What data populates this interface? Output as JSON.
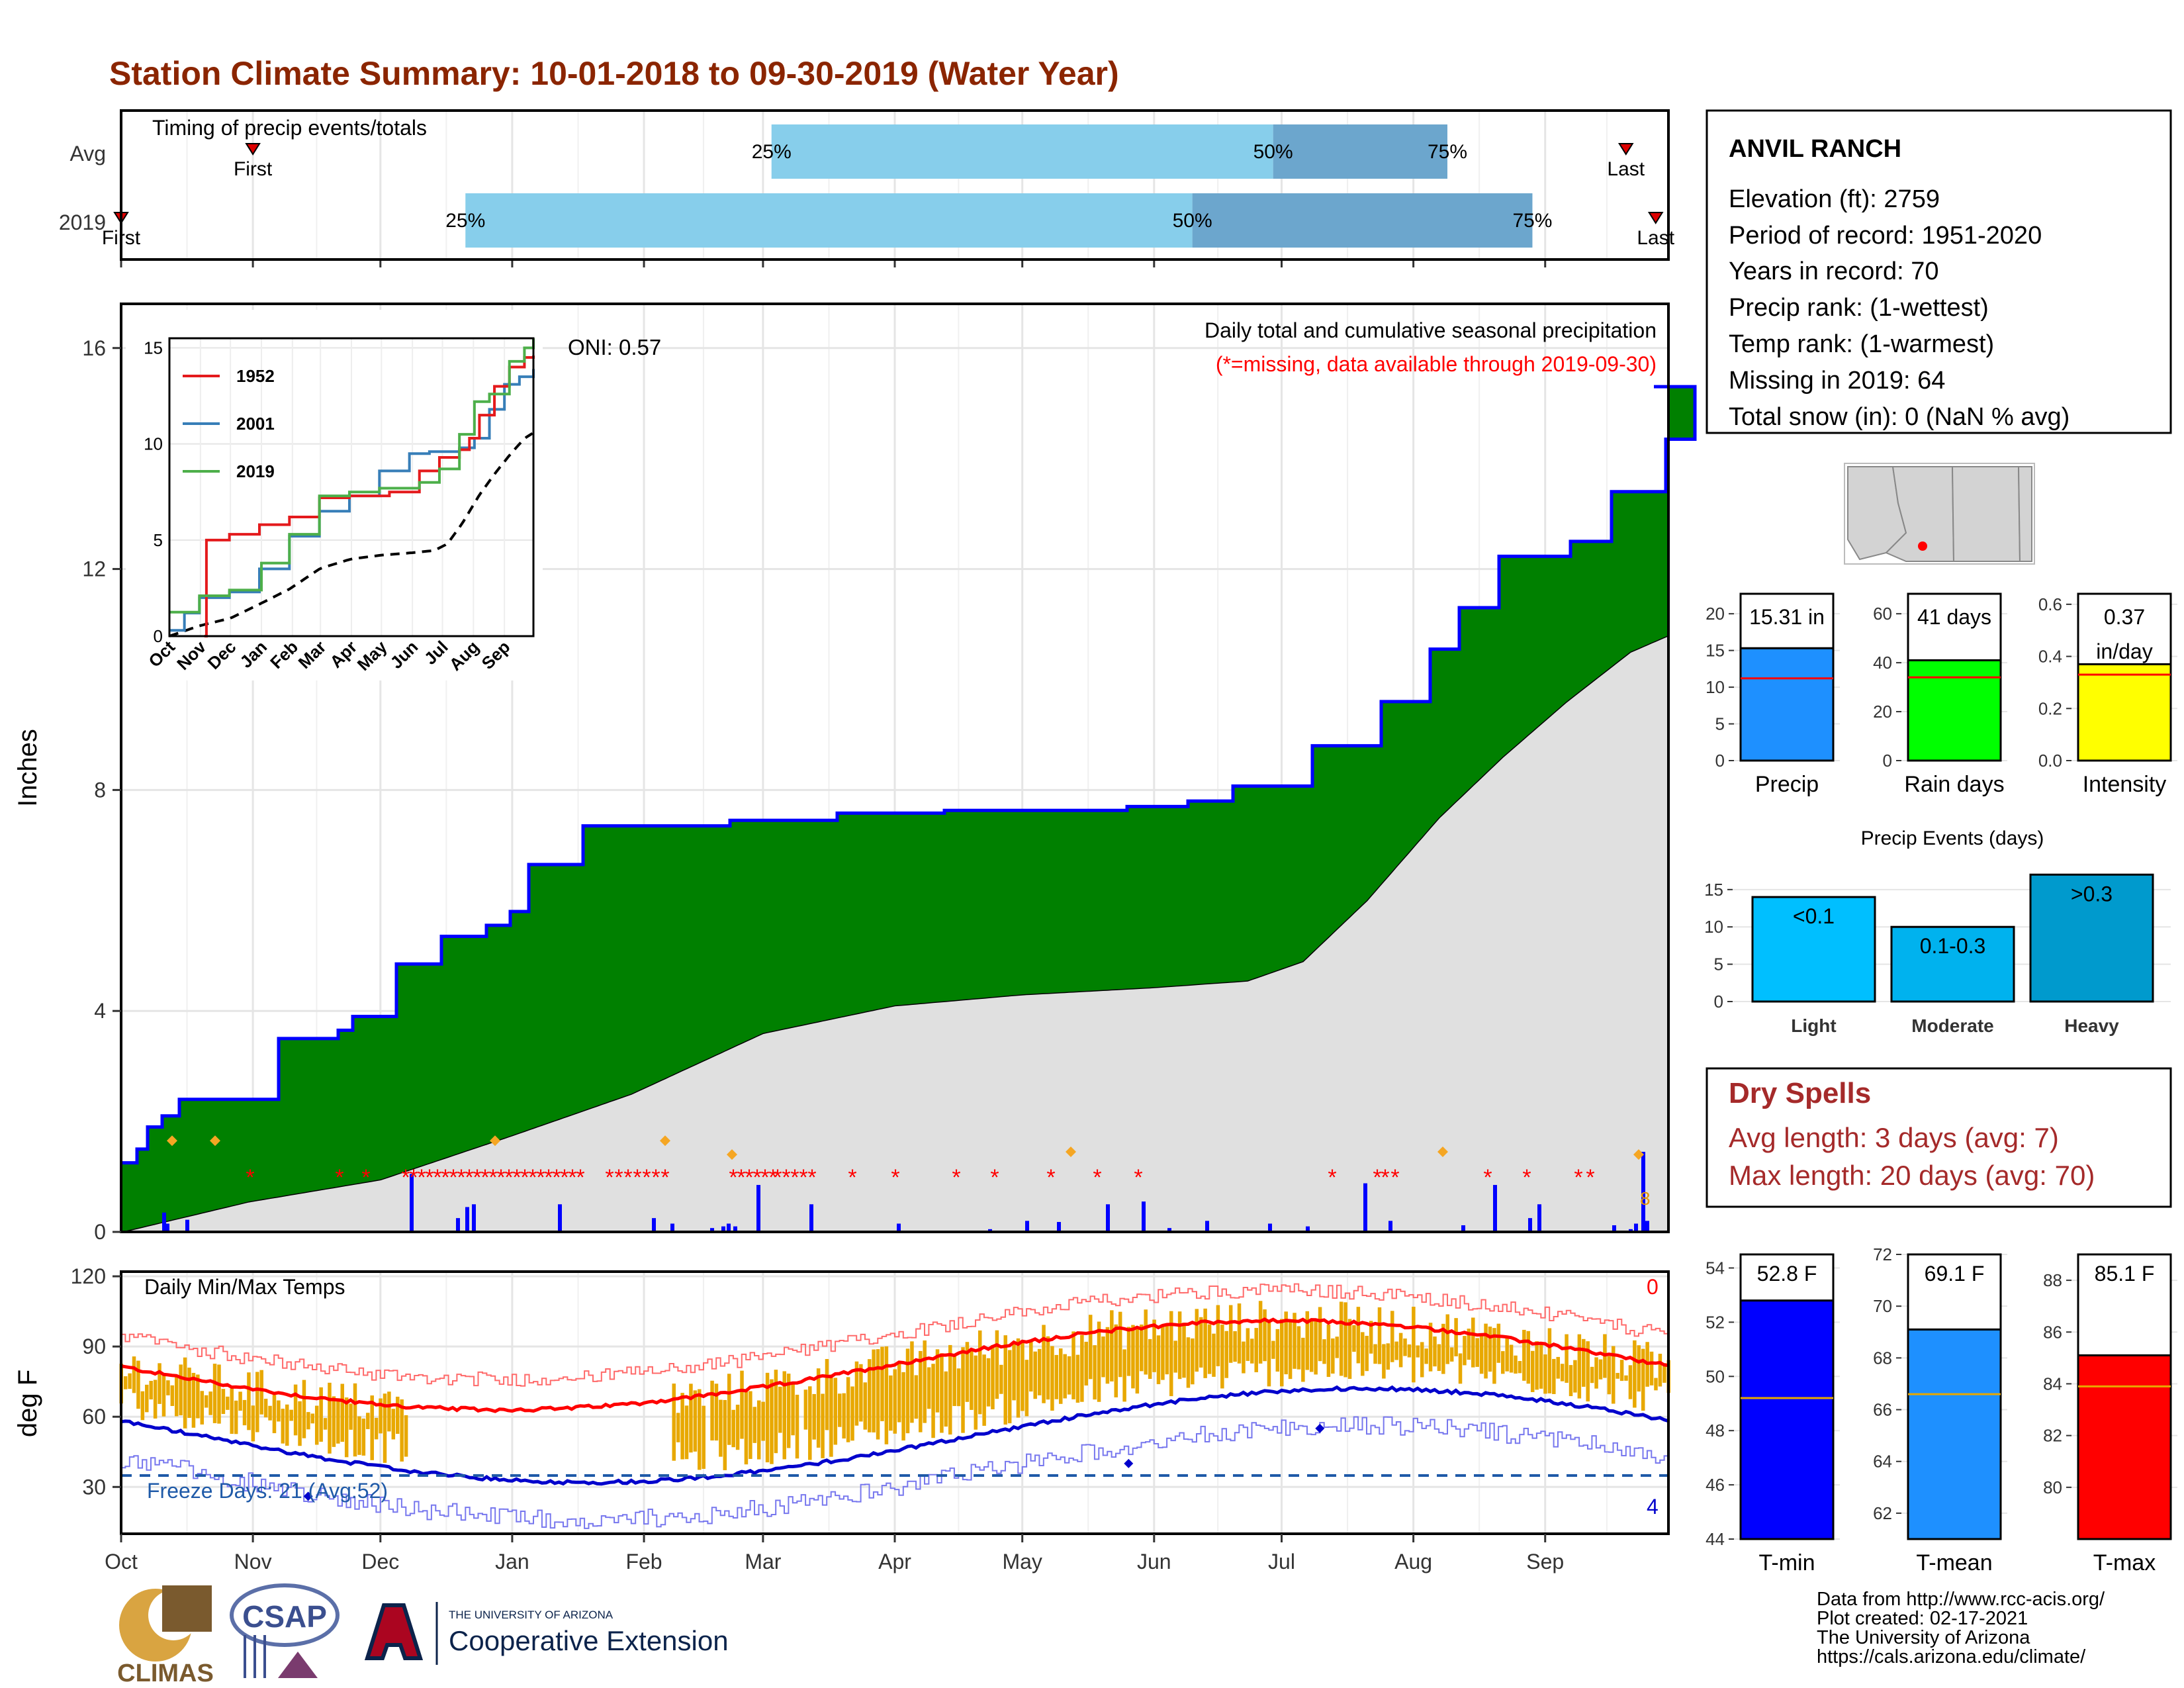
{
  "title": "Station Climate Summary: 10-01-2018 to 09-30-2019 (Water Year)",
  "colors": {
    "title": "#8b2500",
    "bar_light": "#87ceeb",
    "bar_dark": "#6ca6cd",
    "green": "#008000",
    "gray_fill": "#e0e0e0",
    "precip_bar": "#0000ff",
    "missing": "#ff0000",
    "temp_bar": "#e8a800",
    "tmax_line": "#ff0000",
    "tmin_line": "#0000cc",
    "freeze_line": "#1f5aa8",
    "dry_spells_text": "#a52a2a"
  },
  "timing": {
    "title": "Timing of precip events/totals",
    "rows": [
      {
        "label": "Avg",
        "first_label": "First",
        "last_label": "Last",
        "p25_label": "25%",
        "p50_label": "50%",
        "p75_label": "75%",
        "first_day": 31,
        "p25_day": 153,
        "p50_day": 271,
        "p75_day": 312,
        "last_day": 354
      },
      {
        "label": "2019",
        "first_label": "First",
        "last_label": "Last",
        "p25_label": "25%",
        "p50_label": "50%",
        "p75_label": "75%",
        "first_day": 0,
        "p25_day": 81,
        "p50_day": 252,
        "p75_day": 332,
        "last_day": 361
      }
    ]
  },
  "precip": {
    "ylabel": "Inches",
    "header": "Daily total and cumulative seasonal precipitation",
    "missing_note": "(*=missing, data available through 2019-09-30)",
    "oni_label": "ONI: 0.57",
    "corner_label": "8",
    "yticks": [
      "0",
      "4",
      "8",
      "12",
      "16"
    ]
  },
  "inset": {
    "yticks": [
      "0",
      "5",
      "10",
      "15"
    ],
    "xticks": [
      "Oct",
      "Nov",
      "Dec",
      "Jan",
      "Feb",
      "Mar",
      "Apr",
      "May",
      "Jun",
      "Jul",
      "Aug",
      "Sep"
    ],
    "legend": [
      "1952",
      "2001",
      "2019"
    ],
    "legend_colors": [
      "#e41a1c",
      "#377eb8",
      "#4daf4a"
    ]
  },
  "temps": {
    "title": "Daily Min/Max Temps",
    "ylabel": "deg F",
    "yticks": [
      "30",
      "60",
      "90",
      "120"
    ],
    "freeze_text": "Freeze Days: 21  (Avg:52)",
    "top_count": "0",
    "bottom_count": "4"
  },
  "months": [
    "Oct",
    "Nov",
    "Dec",
    "Jan",
    "Feb",
    "Mar",
    "Apr",
    "May",
    "Jun",
    "Jul",
    "Aug",
    "Sep"
  ],
  "station": {
    "name": "ANVIL RANCH",
    "lines": [
      "Elevation (ft): 2759",
      "Period of record: 1951-2020",
      "Years in record: 70",
      "Precip rank:  (1-wettest)",
      "Temp rank:  (1-warmest)",
      "Missing in 2019: 64",
      "Total snow (in): 0 (NaN % avg)"
    ]
  },
  "summary_bars": [
    {
      "label": "Precip",
      "value": 15.31,
      "avg": 11.2,
      "value_text": "15.31 in",
      "value_text2": "",
      "ymax": 22,
      "yticks": [
        "0",
        "5",
        "10",
        "15",
        "20"
      ],
      "color": "#1e90ff"
    },
    {
      "label": "Rain days",
      "value": 41,
      "avg": 34,
      "value_text": "41 days",
      "value_text2": "",
      "ymax": 66,
      "yticks": [
        "0",
        "20",
        "40",
        "60"
      ],
      "color": "#00ff00"
    },
    {
      "label": "Intensity",
      "value": 0.37,
      "avg": 0.33,
      "value_text": "0.37",
      "value_text2": "in/day",
      "ymax": 0.62,
      "yticks": [
        "0.0",
        "0.2",
        "0.4",
        "0.6"
      ],
      "color": "#ffff00"
    }
  ],
  "precip_events": {
    "title": "Precip Events (days)",
    "yticks": [
      "0",
      "5",
      "10",
      "15"
    ],
    "bars": [
      {
        "label": "Light",
        "value": 14,
        "value_text": "<0.1",
        "color": "#00bfff"
      },
      {
        "label": "Moderate",
        "value": 10,
        "value_text": "0.1-0.3",
        "color": "#00b2ee"
      },
      {
        "label": "Heavy",
        "value": 17,
        "value_text": ">0.3",
        "color": "#009acd"
      }
    ]
  },
  "dry_spells": {
    "title": "Dry Spells",
    "line1": "Avg length: 3 days (avg: 7)",
    "line2": "Max length: 20 days (avg: 70)"
  },
  "temp_bars": [
    {
      "label": "T-min",
      "value": 52.8,
      "avg": 49.2,
      "value_text": "52.8 F",
      "ymin": 44,
      "ymax": 54.5,
      "yticks": [
        "44",
        "46",
        "48",
        "50",
        "52",
        "54"
      ],
      "color": "#0000ff"
    },
    {
      "label": "T-mean",
      "value": 69.1,
      "avg": 66.6,
      "value_text": "69.1 F",
      "ymin": 61,
      "ymax": 72,
      "yticks": [
        "62",
        "64",
        "66",
        "68",
        "70",
        "72"
      ],
      "color": "#1e90ff"
    },
    {
      "label": "T-max",
      "value": 85.1,
      "avg": 83.9,
      "value_text": "85.1 F",
      "ymin": 78,
      "ymax": 89,
      "yticks": [
        "80",
        "82",
        "84",
        "86",
        "88"
      ],
      "color": "#ff0000"
    }
  ],
  "credits": [
    "Data from http://www.rcc-acis.org/",
    "Plot created: 02-17-2021",
    "The University of Arizona",
    "https://cals.arizona.edu/climate/"
  ],
  "logos": {
    "climas": "CLIMAS",
    "csap": "CSAP",
    "ua_small": "THE UNIVERSITY OF ARIZONA",
    "ua_big": "Cooperative Extension"
  }
}
